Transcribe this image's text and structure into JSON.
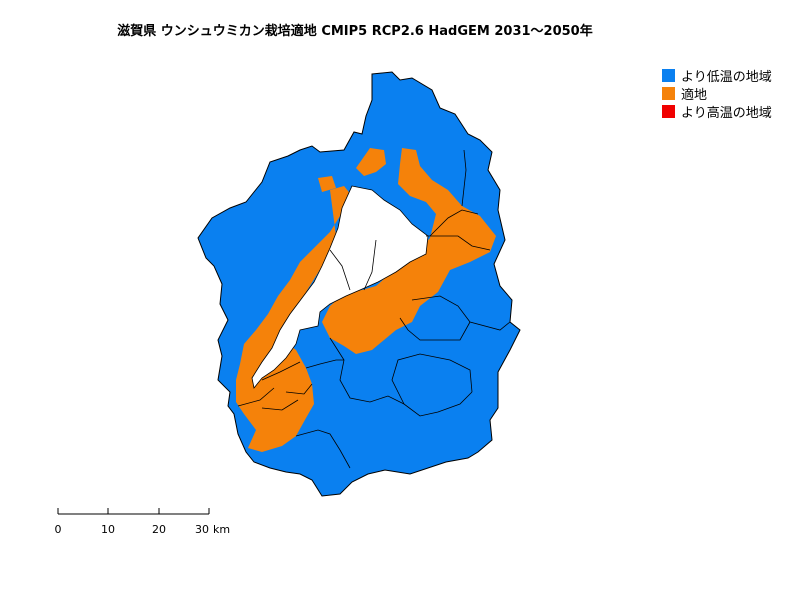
{
  "title": "滋賀県 ウンシュウミカン栽培適地 CMIP5 RCP2.6 HadGEM 2031〜2050年",
  "legend": {
    "items": [
      {
        "label": "より低温の地域",
        "color": "#0a80f0"
      },
      {
        "label": "適地",
        "color": "#f5820a"
      },
      {
        "label": "より高温の地域",
        "color": "#f00000"
      }
    ]
  },
  "scale": {
    "ticks": [
      "0",
      "10",
      "20",
      "30"
    ],
    "unit": "km"
  },
  "colors": {
    "lake": "#ffffff",
    "border": "#000000"
  }
}
